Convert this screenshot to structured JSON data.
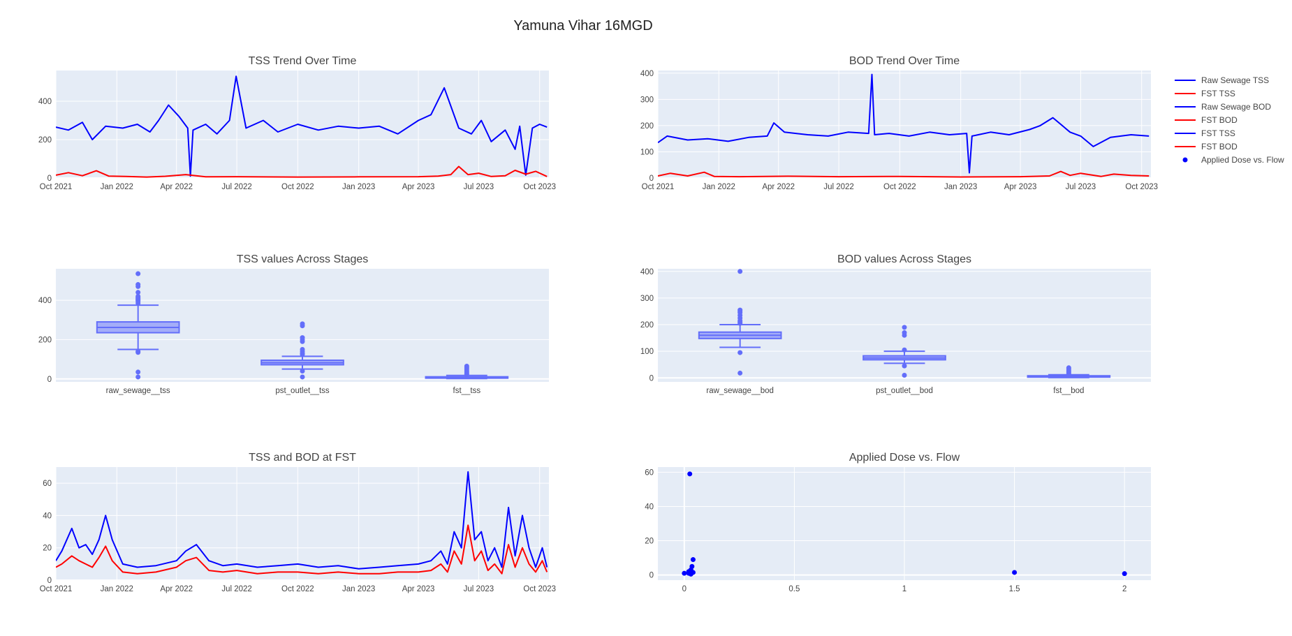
{
  "title": "Yamuna Vihar 16MGD",
  "colors": {
    "blue": "#0000ff",
    "red": "#ff0000",
    "box": "#636efa",
    "plot_bg": "#e5ecf6",
    "grid": "#ffffff"
  },
  "legend": [
    {
      "name": "Raw Sewage TSS",
      "color": "#0000ff",
      "symbol": "line"
    },
    {
      "name": "FST TSS",
      "color": "#ff0000",
      "symbol": "line"
    },
    {
      "name": "Raw Sewage BOD",
      "color": "#0000ff",
      "symbol": "line"
    },
    {
      "name": "FST BOD",
      "color": "#ff0000",
      "symbol": "line"
    },
    {
      "name": "FST TSS",
      "color": "#0000ff",
      "symbol": "line"
    },
    {
      "name": "FST BOD",
      "color": "#ff0000",
      "symbol": "line"
    },
    {
      "name": "Applied Dose vs. Flow",
      "color": "#0000ff",
      "symbol": "dot"
    }
  ],
  "chart_data": [
    {
      "type": "line",
      "title": "TSS Trend Over Time",
      "x_range": [
        "2021-10-01",
        "2023-10-15"
      ],
      "x_ticks": [
        {
          "date": "2021-10-01",
          "label": "Oct 2021"
        },
        {
          "date": "2022-01-01",
          "label": "Jan 2022"
        },
        {
          "date": "2022-04-01",
          "label": "Apr 2022"
        },
        {
          "date": "2022-07-01",
          "label": "Jul 2022"
        },
        {
          "date": "2022-10-01",
          "label": "Oct 2022"
        },
        {
          "date": "2023-01-01",
          "label": "Jan 2023"
        },
        {
          "date": "2023-04-01",
          "label": "Apr 2023"
        },
        {
          "date": "2023-07-01",
          "label": "Jul 2023"
        },
        {
          "date": "2023-10-01",
          "label": "Oct 2023"
        }
      ],
      "ylim": [
        0,
        560
      ],
      "y_ticks": [
        0,
        200,
        400
      ],
      "series": [
        {
          "name": "Raw Sewage TSS",
          "color": "#0000ff",
          "x": [
            "2021-10-01",
            "2021-10-20",
            "2021-11-10",
            "2021-11-25",
            "2021-12-15",
            "2022-01-10",
            "2022-02-01",
            "2022-02-20",
            "2022-03-05",
            "2022-03-20",
            "2022-04-05",
            "2022-04-18",
            "2022-04-22",
            "2022-04-26",
            "2022-05-15",
            "2022-06-01",
            "2022-06-20",
            "2022-06-30",
            "2022-07-15",
            "2022-08-10",
            "2022-09-01",
            "2022-10-01",
            "2022-11-01",
            "2022-12-01",
            "2023-01-01",
            "2023-02-01",
            "2023-03-01",
            "2023-04-01",
            "2023-04-20",
            "2023-05-10",
            "2023-06-01",
            "2023-06-20",
            "2023-07-05",
            "2023-07-20",
            "2023-08-10",
            "2023-08-25",
            "2023-09-01",
            "2023-09-10",
            "2023-09-20",
            "2023-10-01",
            "2023-10-12"
          ],
          "y": [
            265,
            250,
            290,
            200,
            270,
            260,
            280,
            240,
            300,
            380,
            320,
            260,
            10,
            250,
            280,
            230,
            300,
            530,
            260,
            300,
            240,
            280,
            250,
            270,
            260,
            270,
            230,
            300,
            330,
            470,
            260,
            230,
            300,
            190,
            250,
            150,
            270,
            15,
            260,
            280,
            265
          ]
        },
        {
          "name": "FST TSS",
          "color": "#ff0000",
          "x": [
            "2021-10-01",
            "2021-10-20",
            "2021-11-10",
            "2021-12-01",
            "2021-12-20",
            "2022-01-15",
            "2022-02-15",
            "2022-03-15",
            "2022-04-15",
            "2022-05-15",
            "2022-07-01",
            "2022-10-01",
            "2023-01-01",
            "2023-04-01",
            "2023-05-01",
            "2023-05-20",
            "2023-06-01",
            "2023-06-15",
            "2023-07-01",
            "2023-07-20",
            "2023-08-10",
            "2023-08-25",
            "2023-09-10",
            "2023-09-25",
            "2023-10-12"
          ],
          "y": [
            15,
            28,
            12,
            38,
            10,
            8,
            5,
            9,
            18,
            6,
            7,
            5,
            6,
            7,
            10,
            18,
            60,
            18,
            25,
            8,
            12,
            40,
            20,
            35,
            8
          ]
        }
      ]
    },
    {
      "type": "line",
      "title": "BOD Trend Over Time",
      "x_range": [
        "2021-10-01",
        "2023-10-15"
      ],
      "x_ticks": [
        {
          "date": "2021-10-01",
          "label": "Oct 2021"
        },
        {
          "date": "2022-01-01",
          "label": "Jan 2022"
        },
        {
          "date": "2022-04-01",
          "label": "Apr 2022"
        },
        {
          "date": "2022-07-01",
          "label": "Jul 2022"
        },
        {
          "date": "2022-10-01",
          "label": "Oct 2022"
        },
        {
          "date": "2023-01-01",
          "label": "Jan 2023"
        },
        {
          "date": "2023-04-01",
          "label": "Apr 2023"
        },
        {
          "date": "2023-07-01",
          "label": "Jul 2023"
        },
        {
          "date": "2023-10-01",
          "label": "Oct 2023"
        }
      ],
      "ylim": [
        0,
        410
      ],
      "y_ticks": [
        0,
        100,
        200,
        300,
        400
      ],
      "series": [
        {
          "name": "Raw Sewage BOD",
          "color": "#0000ff",
          "x": [
            "2021-10-01",
            "2021-10-15",
            "2021-11-15",
            "2021-12-15",
            "2022-01-15",
            "2022-02-15",
            "2022-03-15",
            "2022-03-25",
            "2022-04-10",
            "2022-05-15",
            "2022-06-15",
            "2022-07-15",
            "2022-08-15",
            "2022-08-20",
            "2022-08-24",
            "2022-09-15",
            "2022-10-15",
            "2022-11-15",
            "2022-12-15",
            "2023-01-10",
            "2023-01-14",
            "2023-01-18",
            "2023-02-15",
            "2023-03-15",
            "2023-04-15",
            "2023-05-01",
            "2023-05-20",
            "2023-06-15",
            "2023-07-01",
            "2023-07-20",
            "2023-08-15",
            "2023-09-15",
            "2023-10-12"
          ],
          "y": [
            135,
            160,
            145,
            150,
            140,
            155,
            160,
            210,
            175,
            165,
            160,
            175,
            170,
            395,
            165,
            170,
            160,
            175,
            165,
            170,
            20,
            160,
            175,
            165,
            185,
            200,
            230,
            175,
            160,
            120,
            155,
            165,
            160
          ]
        },
        {
          "name": "FST BOD",
          "color": "#ff0000",
          "x": [
            "2021-10-01",
            "2021-10-20",
            "2021-11-15",
            "2021-12-10",
            "2021-12-25",
            "2022-02-01",
            "2022-04-15",
            "2022-07-01",
            "2022-10-01",
            "2023-01-01",
            "2023-04-01",
            "2023-05-15",
            "2023-06-01",
            "2023-06-15",
            "2023-07-01",
            "2023-08-01",
            "2023-08-20",
            "2023-09-15",
            "2023-10-12"
          ],
          "y": [
            8,
            18,
            8,
            22,
            6,
            5,
            7,
            5,
            6,
            4,
            5,
            8,
            25,
            10,
            18,
            6,
            15,
            10,
            8
          ]
        }
      ]
    },
    {
      "type": "box",
      "title": "TSS values Across Stages",
      "categories": [
        "raw_sewage__tss",
        "pst_outlet__tss",
        "fst__tss"
      ],
      "ylim": [
        -15,
        560
      ],
      "y_ticks": [
        0,
        200,
        400
      ],
      "boxes": [
        {
          "q1": 235,
          "median": 262,
          "q3": 290,
          "lower": 150,
          "upper": 375,
          "outliers": [
            10,
            35,
            135,
            140,
            385,
            395,
            400,
            405,
            410,
            415,
            420,
            440,
            470,
            480,
            535
          ]
        },
        {
          "q1": 72,
          "median": 82,
          "q3": 95,
          "lower": 50,
          "upper": 115,
          "outliers": [
            10,
            40,
            125,
            130,
            140,
            150,
            190,
            200,
            210,
            270,
            280
          ]
        },
        {
          "q1": 6,
          "median": 8,
          "q3": 11,
          "lower": 2,
          "upper": 18,
          "outliers": [
            22,
            28,
            35,
            42,
            50,
            58,
            65
          ]
        }
      ]
    },
    {
      "type": "box",
      "title": "BOD values Across Stages",
      "categories": [
        "raw_sewage__bod",
        "pst_outlet__bod",
        "fst__bod"
      ],
      "ylim": [
        -15,
        410
      ],
      "y_ticks": [
        0,
        100,
        200,
        300,
        400
      ],
      "boxes": [
        {
          "q1": 148,
          "median": 160,
          "q3": 172,
          "lower": 115,
          "upper": 200,
          "outliers": [
            18,
            95,
            205,
            210,
            215,
            225,
            235,
            245,
            250,
            255,
            400
          ]
        },
        {
          "q1": 68,
          "median": 75,
          "q3": 83,
          "lower": 55,
          "upper": 100,
          "outliers": [
            10,
            45,
            105,
            160,
            170,
            190
          ]
        },
        {
          "q1": 4,
          "median": 6,
          "q3": 8,
          "lower": 1,
          "upper": 12,
          "outliers": [
            15,
            20,
            25,
            30,
            35,
            38
          ]
        }
      ]
    },
    {
      "type": "line",
      "title": "TSS and BOD at FST",
      "x_range": [
        "2021-10-01",
        "2023-10-15"
      ],
      "x_ticks": [
        {
          "date": "2021-10-01",
          "label": "Oct 2021"
        },
        {
          "date": "2022-01-01",
          "label": "Jan 2022"
        },
        {
          "date": "2022-04-01",
          "label": "Apr 2022"
        },
        {
          "date": "2022-07-01",
          "label": "Jul 2022"
        },
        {
          "date": "2022-10-01",
          "label": "Oct 2022"
        },
        {
          "date": "2023-01-01",
          "label": "Jan 2023"
        },
        {
          "date": "2023-04-01",
          "label": "Apr 2023"
        },
        {
          "date": "2023-07-01",
          "label": "Jul 2023"
        },
        {
          "date": "2023-10-01",
          "label": "Oct 2023"
        }
      ],
      "ylim": [
        0,
        70
      ],
      "y_ticks": [
        0,
        20,
        40,
        60
      ],
      "series": [
        {
          "name": "FST TSS",
          "color": "#0000ff",
          "x": [
            "2021-10-01",
            "2021-10-10",
            "2021-10-25",
            "2021-11-05",
            "2021-11-15",
            "2021-11-25",
            "2021-12-05",
            "2021-12-15",
            "2021-12-25",
            "2022-01-10",
            "2022-02-01",
            "2022-03-01",
            "2022-04-01",
            "2022-04-15",
            "2022-05-01",
            "2022-05-20",
            "2022-06-10",
            "2022-07-01",
            "2022-08-01",
            "2022-09-01",
            "2022-10-01",
            "2022-11-01",
            "2022-12-01",
            "2023-01-01",
            "2023-02-01",
            "2023-03-01",
            "2023-04-01",
            "2023-04-20",
            "2023-05-05",
            "2023-05-15",
            "2023-05-25",
            "2023-06-05",
            "2023-06-15",
            "2023-06-25",
            "2023-07-05",
            "2023-07-15",
            "2023-07-25",
            "2023-08-05",
            "2023-08-15",
            "2023-08-25",
            "2023-09-05",
            "2023-09-15",
            "2023-09-25",
            "2023-10-05",
            "2023-10-12"
          ],
          "y": [
            12,
            18,
            32,
            20,
            22,
            16,
            25,
            40,
            25,
            10,
            8,
            9,
            12,
            18,
            22,
            12,
            9,
            10,
            8,
            9,
            10,
            8,
            9,
            7,
            8,
            9,
            10,
            12,
            18,
            10,
            30,
            20,
            67,
            25,
            30,
            12,
            20,
            8,
            45,
            15,
            40,
            20,
            8,
            20,
            8
          ]
        },
        {
          "name": "FST BOD",
          "color": "#ff0000",
          "x": [
            "2021-10-01",
            "2021-10-10",
            "2021-10-25",
            "2021-11-05",
            "2021-11-15",
            "2021-11-25",
            "2021-12-05",
            "2021-12-15",
            "2021-12-25",
            "2022-01-10",
            "2022-02-01",
            "2022-03-01",
            "2022-04-01",
            "2022-04-15",
            "2022-05-01",
            "2022-05-20",
            "2022-06-10",
            "2022-07-01",
            "2022-08-01",
            "2022-09-01",
            "2022-10-01",
            "2022-11-01",
            "2022-12-01",
            "2023-01-01",
            "2023-02-01",
            "2023-03-01",
            "2023-04-01",
            "2023-04-20",
            "2023-05-05",
            "2023-05-15",
            "2023-05-25",
            "2023-06-05",
            "2023-06-15",
            "2023-06-25",
            "2023-07-05",
            "2023-07-15",
            "2023-07-25",
            "2023-08-05",
            "2023-08-15",
            "2023-08-25",
            "2023-09-05",
            "2023-09-15",
            "2023-09-25",
            "2023-10-05",
            "2023-10-12"
          ],
          "y": [
            8,
            10,
            15,
            12,
            10,
            8,
            14,
            21,
            12,
            5,
            4,
            5,
            8,
            12,
            14,
            6,
            5,
            6,
            4,
            5,
            5,
            4,
            5,
            4,
            4,
            5,
            5,
            6,
            10,
            5,
            18,
            10,
            34,
            12,
            18,
            6,
            10,
            4,
            22,
            8,
            20,
            10,
            5,
            12,
            5
          ]
        }
      ]
    },
    {
      "type": "scatter",
      "title": "Applied Dose vs. Flow",
      "xlim": [
        -0.12,
        2.12
      ],
      "x_ticks": [
        {
          "value": 0,
          "label": "0"
        },
        {
          "value": 0.5,
          "label": "0.5"
        },
        {
          "value": 1,
          "label": "1"
        },
        {
          "value": 1.5,
          "label": "1.5"
        },
        {
          "value": 2,
          "label": "2"
        }
      ],
      "ylim": [
        -3,
        63
      ],
      "y_ticks": [
        0,
        20,
        40,
        60
      ],
      "series": [
        {
          "name": "Applied Dose vs. Flow",
          "color": "#0000ff",
          "x": [
            0.0,
            0.02,
            0.02,
            0.03,
            0.03,
            0.035,
            0.04,
            0.04,
            0.03,
            0.025,
            0.03,
            1.5,
            2.0
          ],
          "y": [
            1,
            1,
            2,
            1,
            3,
            5,
            9,
            1.5,
            0.5,
            59,
            2,
            1.5,
            0.8
          ]
        }
      ]
    }
  ]
}
